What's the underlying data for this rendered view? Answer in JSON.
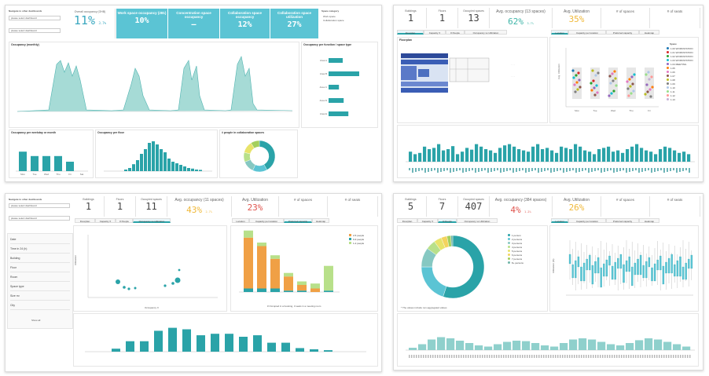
{
  "dash1": {
    "nav_title": "Navigate to other dashboards",
    "select1": "please select dashboard",
    "select2": "please select dashboard",
    "kpi_overall_label": "Overall occupancy (OHB)",
    "kpi_overall_value": "11%",
    "kpi_overall_small": "3.7%",
    "kpi_work_label": "Work space occupancy (281)",
    "kpi_work_value": "10%",
    "kpi_conc_label": "Concentration space occupancy",
    "kpi_conc_value": "–",
    "kpi_collab_label": "Collaboration space occupancy",
    "kpi_collab_value": "12%",
    "kpi_collab_util_label": "Collaboration space utilization",
    "kpi_collab_util_value": "27%",
    "space_category_title": "Space category",
    "space_category_items": [
      "Work space",
      "Collaboration space"
    ],
    "occ_monthly_title": "Occupancy (monthly)",
    "occ_function_title": "Occupancy per function / space type",
    "occ_weekday_title": "Occupancy per weekday or month",
    "occ_floor_title": "Occupancy per floor",
    "people_collab_title": "# people in collaboration spaces",
    "weekday_categories": [
      "Mon",
      "Tue",
      "Wed",
      "Thu",
      "Fri",
      "Sat"
    ],
    "weekday_values": [
      0.62,
      0.48,
      0.48,
      0.48,
      0.3,
      0.0
    ],
    "floor_values": [
      0.05,
      0.1,
      0.22,
      0.35,
      0.55,
      0.7,
      0.9,
      0.95,
      0.85,
      0.7,
      0.6,
      0.4,
      0.3,
      0.25,
      0.2,
      0.15,
      0.1,
      0.08,
      0.05,
      0.04
    ],
    "function_values": [
      0.3,
      0.65,
      0.22,
      0.32,
      0.42
    ],
    "function_labels": [
      "Area A",
      "Area B",
      "Area C",
      "Area D",
      "Area E"
    ],
    "donut_labels": [
      "1 person",
      "2 persons",
      "3 persons",
      "4-5 persons",
      "6+ persons",
      "7 persons"
    ],
    "donut_values": [
      0.42,
      0.15,
      0.12,
      0.1,
      0.12,
      0.09
    ]
  },
  "dash2": {
    "kpi_buildings_label": "Buildings",
    "kpi_buildings_value": "1",
    "kpi_floors_label": "Floors",
    "kpi_floors_value": "1",
    "kpi_rooms_label": "Occupied spaces",
    "kpi_rooms_value": "13",
    "kpi_avg_label": "Avg. occupancy (13 spaces)",
    "kpi_avg_value": "62%",
    "kpi_avg_small": "3.7%",
    "kpi_util_label": "Avg. Utilization",
    "kpi_util_value": "35%",
    "kpi_spaces_label": "# of spaces",
    "kpi_seats_label": "# of seats",
    "tabs_left": [
      "Floorplan",
      "Capacity X",
      "# People",
      "Occupancy vs Utilization"
    ],
    "tabs_right": [
      "Location",
      "Capacity per location",
      "Preferred capacity",
      "Heatmap"
    ],
    "floorplan_title": "Floorplan",
    "legend_title": "Space",
    "legend_items": [
      "1.00 WORKSTATION",
      "1.01 WORKSTATION",
      "1.02 WORKSTATION",
      "1.03 WORKSTATION",
      "1.04 MEETING",
      "1.05",
      "1.06",
      "1.07",
      "1.08",
      "1.09",
      "1.10",
      "1.11",
      "1.12",
      "1.13"
    ],
    "legend_colors": [
      "#1f77b4",
      "#d62728",
      "#2ca02c",
      "#17becf",
      "#9467bd",
      "#ff7f0e",
      "#e377c2",
      "#8c564b",
      "#bcbd22",
      "#7f7f7f",
      "#aec7e8",
      "#98df8a",
      "#ff9896",
      "#c5b0d5"
    ],
    "dot_categories": [
      "Mon",
      "Tue",
      "Wed",
      "Thu",
      "Fri"
    ],
    "ylabel": "Avg. Utilization",
    "bar_values": [
      0.4,
      0.3,
      0.35,
      0.6,
      0.5,
      0.55,
      0.7,
      0.45,
      0.5,
      0.62,
      0.3,
      0.4,
      0.55,
      0.48,
      0.7,
      0.6,
      0.5,
      0.45,
      0.35,
      0.55,
      0.65,
      0.7,
      0.6,
      0.5,
      0.45,
      0.4,
      0.6,
      0.7,
      0.5,
      0.55,
      0.45,
      0.35,
      0.6,
      0.55,
      0.5,
      0.7,
      0.6,
      0.45,
      0.4,
      0.3,
      0.5,
      0.55,
      0.6,
      0.4,
      0.45,
      0.35,
      0.5,
      0.6,
      0.7,
      0.55,
      0.45,
      0.4,
      0.3,
      0.5,
      0.6,
      0.55,
      0.45,
      0.35,
      0.4,
      0.3
    ]
  },
  "dash3": {
    "nav_title": "Navigate to other dashboards",
    "select1": "please select dashboard",
    "select2": "please select dashboard",
    "kpi_buildings_label": "Buildings",
    "kpi_buildings_value": "1",
    "kpi_floors_label": "Floors",
    "kpi_floors_value": "1",
    "kpi_rooms_label": "Occupied spaces",
    "kpi_rooms_value": "11",
    "kpi_avg_label": "Avg. occupancy (11 spaces)",
    "kpi_avg_value": "43%",
    "kpi_avg_small": "2.7%",
    "kpi_util_label": "Avg. Utilization",
    "kpi_util_value": "23%",
    "kpi_spaces_label": "# of spaces",
    "kpi_seats_label": "# of seats",
    "tabs_left": [
      "Floorplan",
      "Capacity X",
      "# People",
      "Occupancy vs Utilization"
    ],
    "tabs_right": [
      "Location",
      "Capacity per location",
      "Preferred capacity",
      "Heatmap"
    ],
    "filters": [
      "Date",
      "Time in 24 (h)",
      "Building",
      "Floor",
      "Room",
      "Space type",
      "Size m²",
      "City"
    ],
    "filter_more": "Show all",
    "scatter_xlabel": "Occupancy X",
    "scatter_ylabel": "Utilization",
    "stacked_legend": [
      "2-5 people",
      "6-9 people",
      "1-2 people"
    ],
    "stacked_legend_colors": [
      "#f0a045",
      "#2aa3a8",
      "#b8e08a"
    ],
    "stacked_caption": "# Occupied in a booking, 3 seats in a meeting room",
    "stacked_series": [
      [
        0.05,
        0.05,
        0.05,
        0.02,
        0.02,
        0.0,
        0.02
      ],
      [
        0.72,
        0.6,
        0.42,
        0.2,
        0.08,
        0.05,
        0.0
      ],
      [
        0.1,
        0.05,
        0.05,
        0.05,
        0.05,
        0.07,
        0.35
      ]
    ],
    "bottom_bars": [
      0.1,
      0.35,
      0.35,
      0.7,
      0.8,
      0.75,
      0.55,
      0.6,
      0.6,
      0.5,
      0.55,
      0.3,
      0.3,
      0.12,
      0.08,
      0.05
    ]
  },
  "dash4": {
    "kpi_buildings_label": "Buildings",
    "kpi_buildings_value": "5",
    "kpi_floors_label": "Floors",
    "kpi_floors_value": "7",
    "kpi_rooms_label": "Occupied spaces",
    "kpi_rooms_value": "407",
    "kpi_avg_label": "Avg. occupancy (384 spaces)",
    "kpi_avg_value": "4%",
    "kpi_avg_small": "1.2%",
    "kpi_util_label": "Avg. Utilization",
    "kpi_util_value": "26%",
    "kpi_spaces_label": "# of spaces",
    "kpi_seats_label": "# of seats",
    "tabs_left": [
      "Floorplan",
      "Capacity X",
      "# People",
      "Occupancy vs Utilization"
    ],
    "tabs_right": [
      "Location",
      "Capacity per location",
      "Preferred capacity",
      "Heatmap"
    ],
    "donut_legend": [
      "1 person",
      "2 persons",
      "3 persons",
      "4 persons",
      "5 persons",
      "6 persons",
      "7 persons",
      "8+ persons"
    ],
    "donut_values": [
      0.55,
      0.2,
      0.1,
      0.05,
      0.04,
      0.03,
      0.02,
      0.01
    ],
    "donut_colors": [
      "#2aa3a8",
      "#5bc4d4",
      "#86c8c2",
      "#b8e08a",
      "#e8e36a",
      "#f4d35e",
      "#a3cf5c",
      "#6fb5a8"
    ],
    "footnote": "* The values include non-aggregated values",
    "ylabel": "Utilization (%)",
    "boxplot_count": 44,
    "bottom_wave": [
      0.1,
      0.25,
      0.45,
      0.55,
      0.5,
      0.4,
      0.3,
      0.2,
      0.15,
      0.25,
      0.35,
      0.4,
      0.38,
      0.3,
      0.2,
      0.15,
      0.3,
      0.45,
      0.5,
      0.45,
      0.35,
      0.25,
      0.2,
      0.3,
      0.42,
      0.5,
      0.45,
      0.35,
      0.25,
      0.15
    ]
  }
}
